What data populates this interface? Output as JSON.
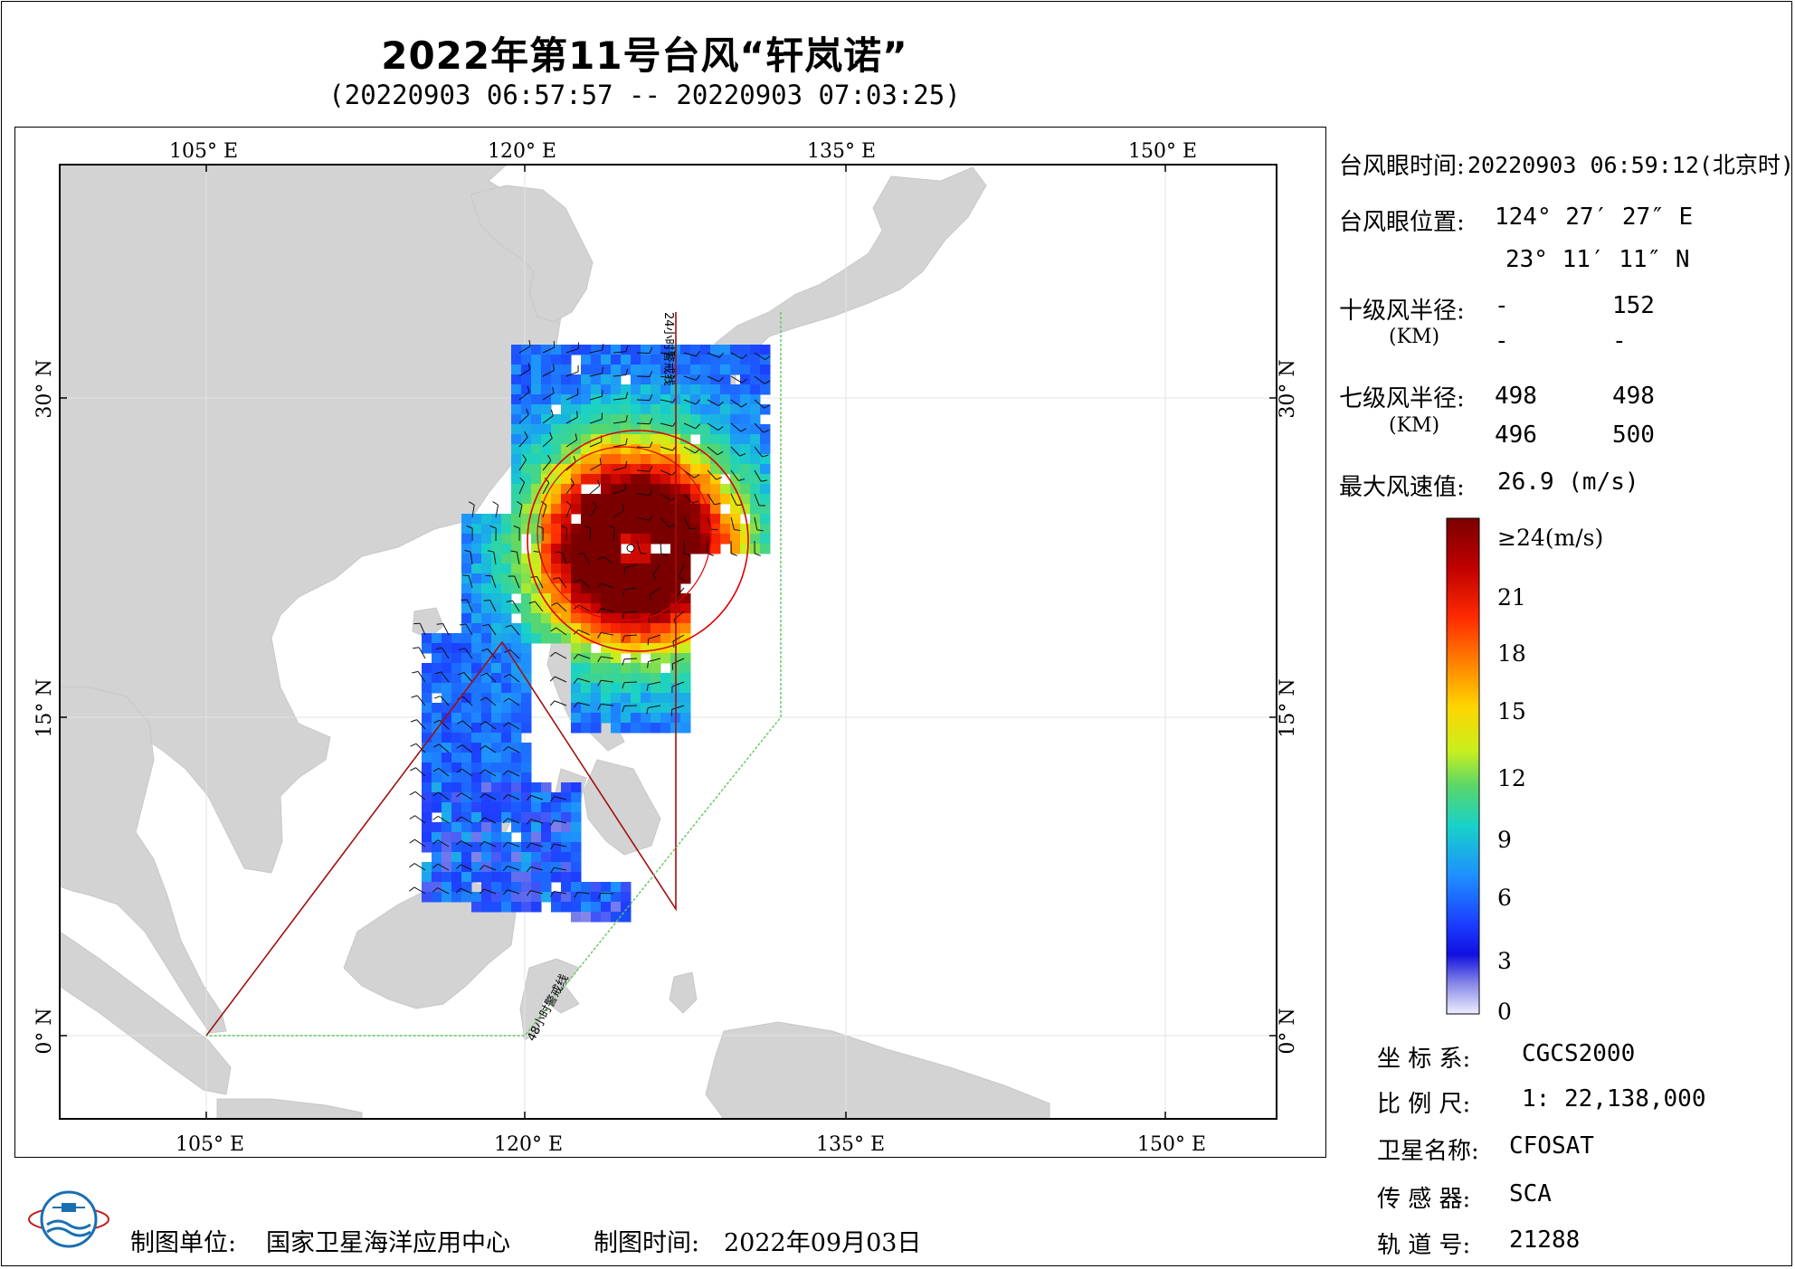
{
  "title": "2022年第11号台风“轩岚诺”",
  "subtitle": "(20220903 06:57:57 -- 20220903 07:03:25)",
  "map": {
    "lon_labels": [
      "105° E",
      "120° E",
      "135° E",
      "150° E"
    ],
    "lat_labels": [
      "30° N",
      "15° N",
      "0° N"
    ],
    "warning_line_24h": "24小时警戒线",
    "warning_line_48h": "48小时警戒线",
    "land_color": "#d3d3d3",
    "sea_color": "#ffffff",
    "warning_24h_color": "#a01010",
    "warning_48h_color": "#5cc85c"
  },
  "info": {
    "eye_time_label": "台风眼时间:",
    "eye_time_value": "20220903 06:59:12(北京时)",
    "eye_pos_label": "台风眼位置:",
    "eye_lon": "124° 27′ 27″ E",
    "eye_lat": "23° 11′ 11″ N",
    "r10_label": "十级风半径:",
    "r10_unit": "(KM)",
    "r10_values": [
      "-",
      "152",
      "-",
      "-"
    ],
    "r7_label": "七级风半径:",
    "r7_unit": "(KM)",
    "r7_values": [
      "498",
      "498",
      "496",
      "500"
    ],
    "max_wind_label": "最大风速值:",
    "max_wind_value": "26.9  (m/s)"
  },
  "colorbar": {
    "ticks": [
      "≥24(m/s)",
      "21",
      "18",
      "15",
      "12",
      "9",
      "6",
      "3",
      "0"
    ],
    "colors_top_to_bottom": [
      "#7a0000",
      "#c00000",
      "#ff2a00",
      "#ff8a00",
      "#ffd500",
      "#c8ef1e",
      "#5ad66a",
      "#18d2c8",
      "#1e90ff",
      "#1c3cff",
      "#1010e0",
      "#8a8ae8",
      "#eeeeff"
    ]
  },
  "meta": {
    "coord_label": "坐 标 系:",
    "coord_value": "CGCS2000",
    "scale_label": "比 例 尺:",
    "scale_value": "1: 22,138,000",
    "satellite_label": "卫星名称:",
    "satellite_value": "CFOSAT",
    "sensor_label": "传 感 器:",
    "sensor_value": "SCA",
    "orbit_label": "轨 道 号:",
    "orbit_value": "21288"
  },
  "footer": {
    "unit_label": "制图单位:",
    "unit_value": "国家卫星海洋应用中心",
    "date_label": "制图时间:",
    "date_value": "2022年09月03日"
  }
}
